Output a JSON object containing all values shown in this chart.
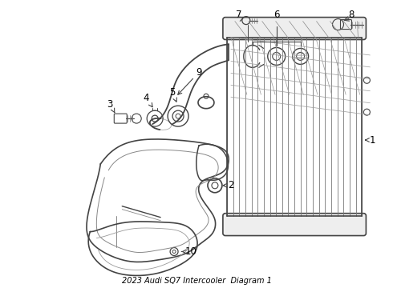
{
  "title": "2023 Audi SQ7 Intercooler  Diagram 1",
  "bg_color": "#ffffff",
  "lc": "#444444",
  "lc2": "#666666",
  "figsize": [
    4.9,
    3.6
  ],
  "dpi": 100,
  "label_fontsize": 8.5,
  "title_fontsize": 7
}
